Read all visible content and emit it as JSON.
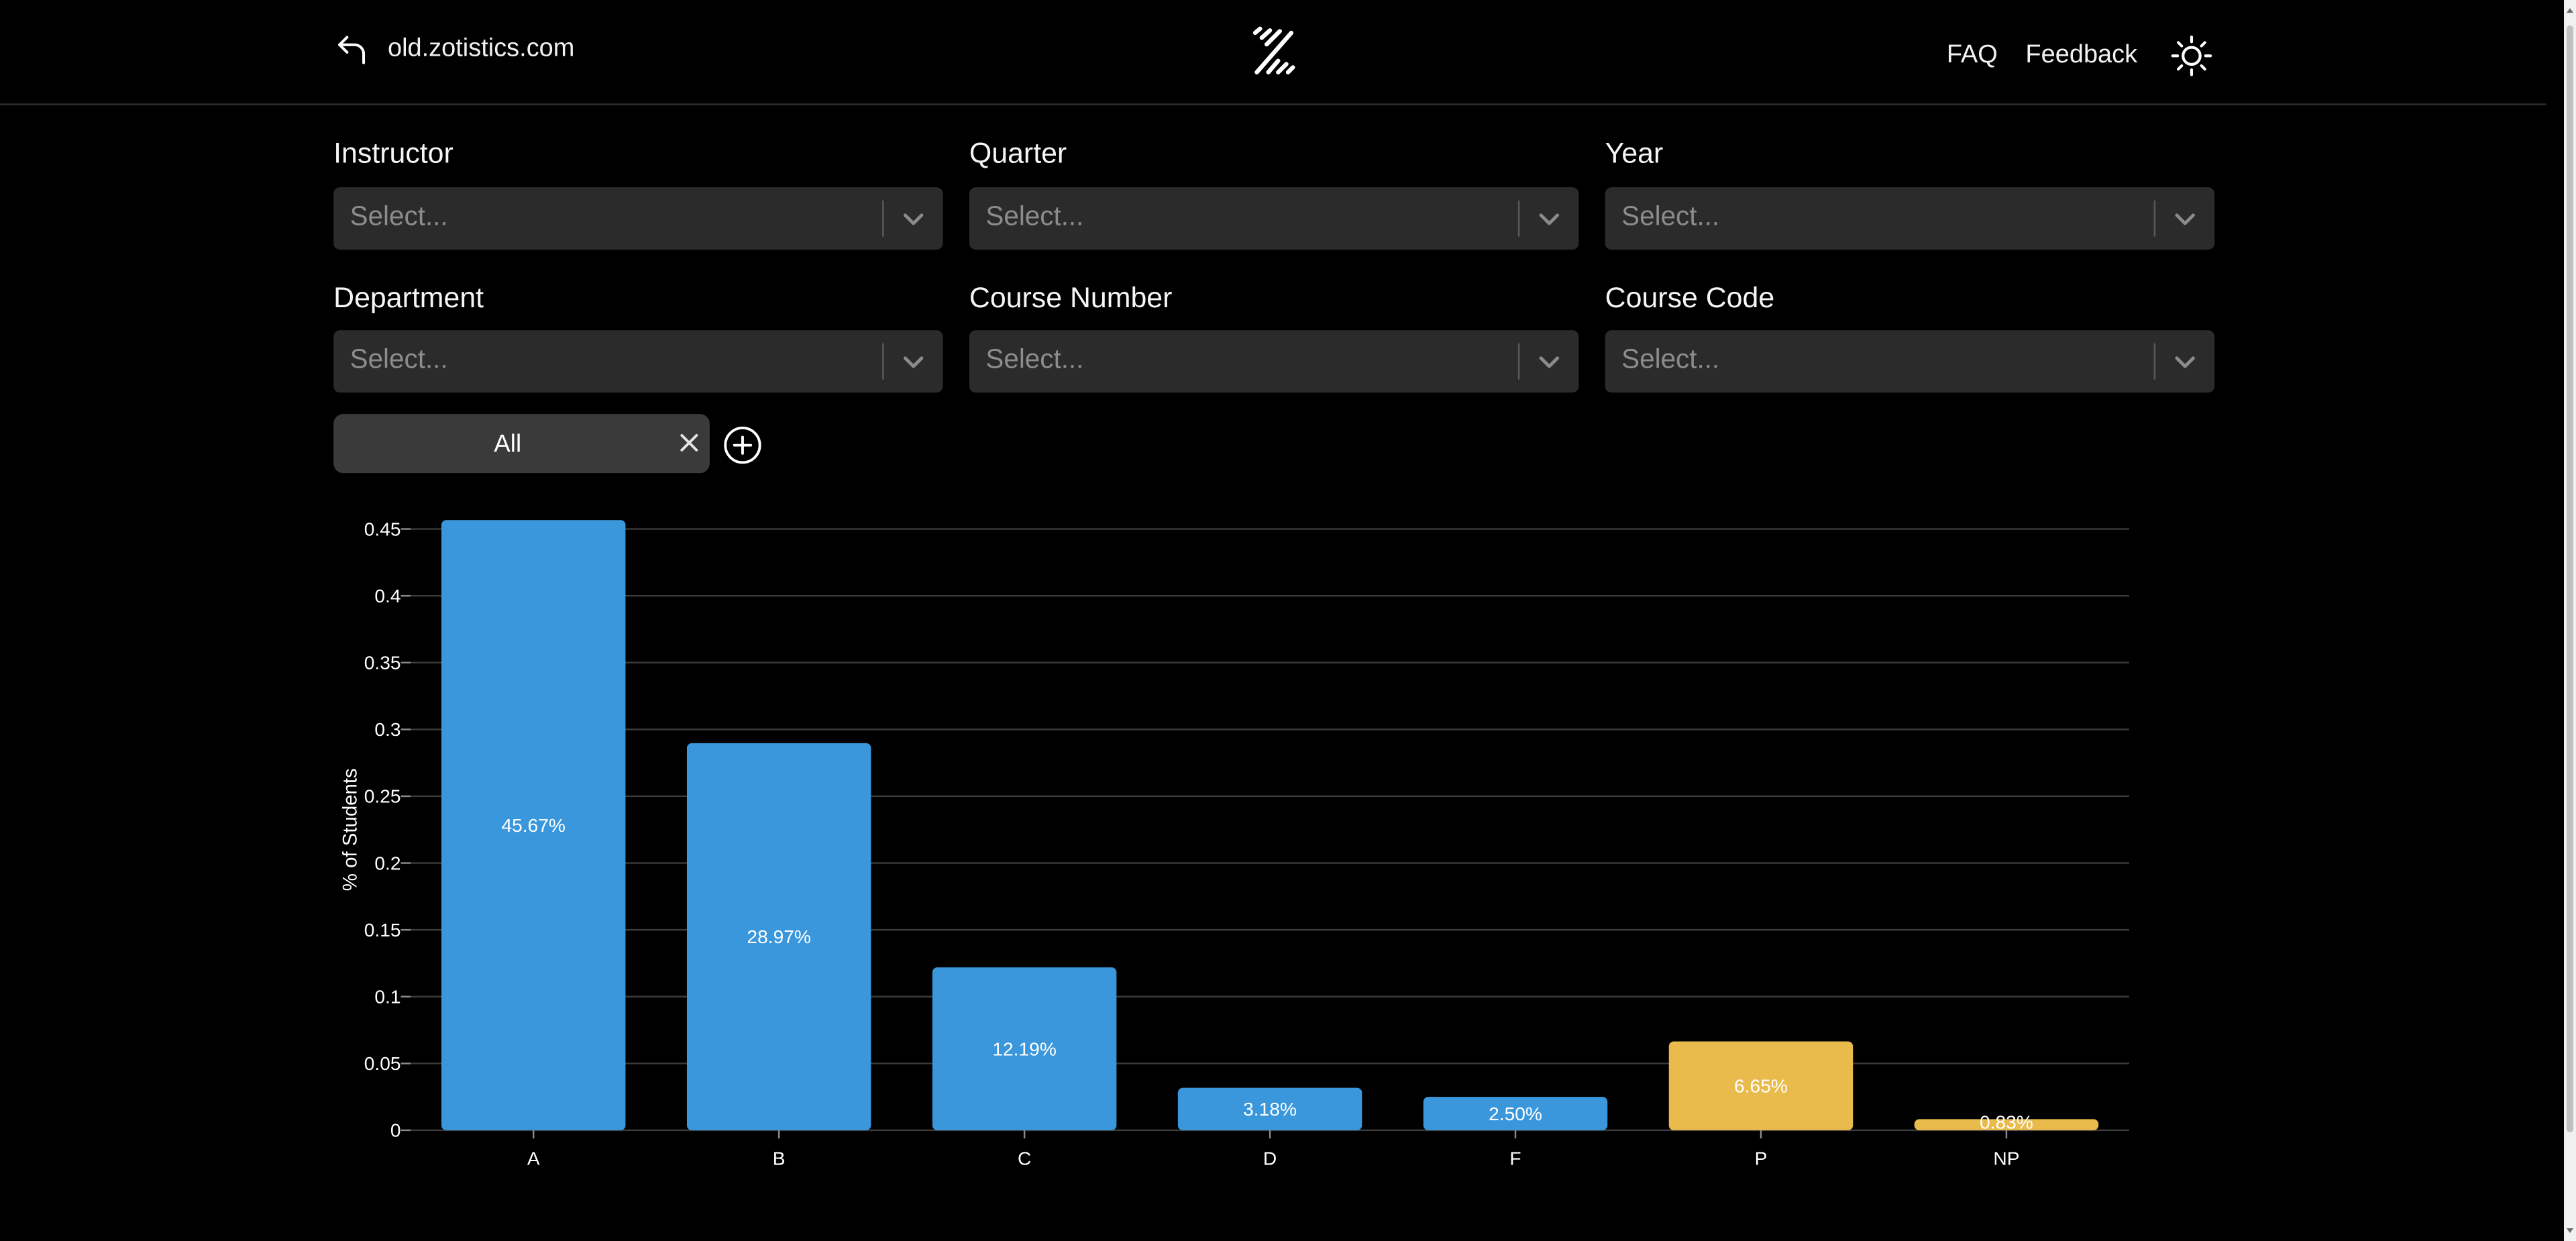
{
  "header": {
    "back_link": "old.zotistics.com",
    "nav": {
      "faq": "FAQ",
      "feedback": "Feedback"
    },
    "icons": {
      "back": "back-arrow-icon",
      "logo": "zotistics-logo",
      "theme": "sun-icon"
    }
  },
  "filters": [
    {
      "label": "Instructor",
      "placeholder": "Select..."
    },
    {
      "label": "Quarter",
      "placeholder": "Select..."
    },
    {
      "label": "Year",
      "placeholder": "Select..."
    },
    {
      "label": "Department",
      "placeholder": "Select..."
    },
    {
      "label": "Course Number",
      "placeholder": "Select..."
    },
    {
      "label": "Course Code",
      "placeholder": "Select..."
    }
  ],
  "tags": [
    {
      "label": "All"
    }
  ],
  "colors": {
    "letter_grade": "#3a97dc",
    "pass_fail": "#e8bb4c",
    "background": "#000000"
  },
  "chart_data": {
    "type": "bar",
    "categories": [
      "A",
      "B",
      "C",
      "D",
      "F",
      "P",
      "NP"
    ],
    "values": [
      0.4567,
      0.2897,
      0.1219,
      0.0318,
      0.025,
      0.0665,
      0.0083
    ],
    "data_labels": [
      "45.67%",
      "28.97%",
      "12.19%",
      "3.18%",
      "2.50%",
      "6.65%",
      "0.83%"
    ],
    "bar_colors": [
      "#3a97dc",
      "#3a97dc",
      "#3a97dc",
      "#3a97dc",
      "#3a97dc",
      "#e8bb4c",
      "#e8bb4c"
    ],
    "ylabel": "% of Students",
    "ylim": [
      0,
      0.45
    ],
    "yticks": [
      0,
      0.05,
      0.1,
      0.15,
      0.2,
      0.25,
      0.3,
      0.35,
      0.4,
      0.45
    ],
    "ytick_labels": [
      "0",
      "0.05",
      "0.1",
      "0.15",
      "0.2",
      "0.25",
      "0.3",
      "0.35",
      "0.4",
      "0.45"
    ],
    "grid": true
  }
}
